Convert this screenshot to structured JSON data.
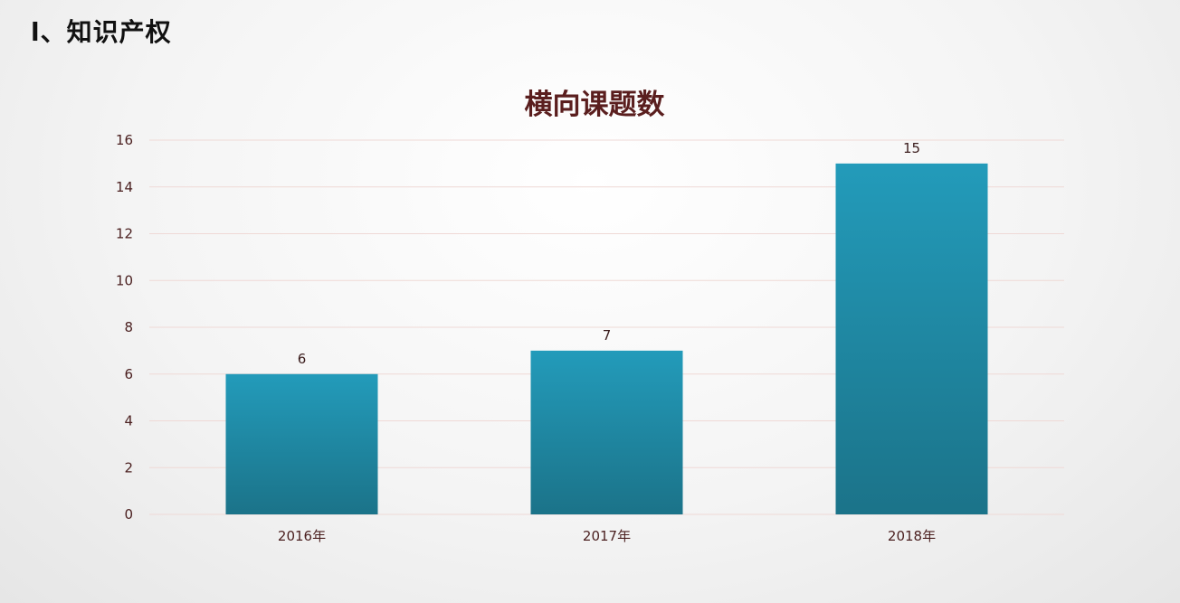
{
  "slide": {
    "heading": "l、知识产权"
  },
  "chart_data": {
    "type": "bar",
    "title": "横向课题数",
    "categories": [
      "2016年",
      "2017年",
      "2018年"
    ],
    "values": [
      6,
      7,
      15
    ],
    "ylim": [
      0,
      16
    ],
    "yticks": [
      0,
      2,
      4,
      6,
      8,
      10,
      12,
      14,
      16
    ],
    "grid": true,
    "data_labels": true,
    "colors": {
      "bar_top": "#239bba",
      "bar_bottom": "#1b7389",
      "grid": "#efd9d6",
      "title": "#5a1e1e",
      "text": "#4a1f1f"
    }
  }
}
